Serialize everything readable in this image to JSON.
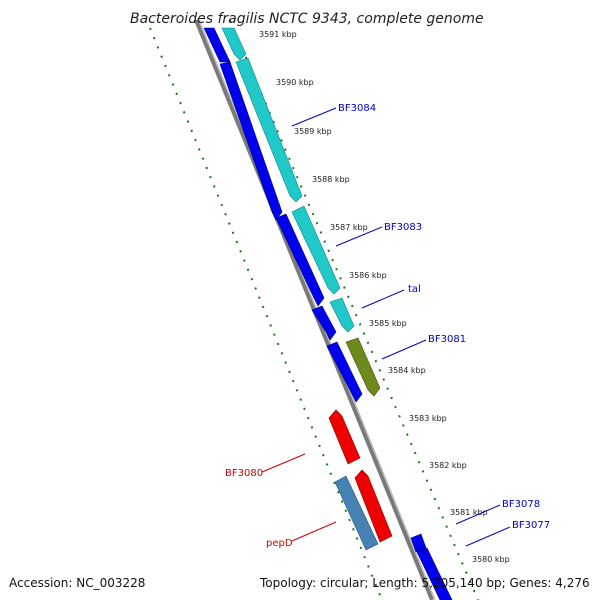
{
  "title": "Bacteroides fragilis NCTC 9343, complete genome",
  "footer": {
    "accession": "Accession: NC_003228",
    "summary": "Topology: circular; Length: 5,205,140 bp; Genes: 4,276"
  },
  "colors": {
    "backbone": "#808080",
    "tick": "#1a7a1a",
    "forward_gene": "#0000ee",
    "cds_cyan": "#20c8c8",
    "rna_olive": "#6f8a1c",
    "reverse_gene": "#ee0000",
    "steel": "#4682b4",
    "label_forward": "#0000cc",
    "label_reverse": "#cc0000"
  },
  "scale_ticks": [
    "3591 kbp",
    "3590 kbp",
    "3589 kbp",
    "3588 kbp",
    "3587 kbp",
    "3586 kbp",
    "3585 kbp",
    "3584 kbp",
    "3583 kbp",
    "3582 kbp",
    "3581 kbp",
    "3580 kbp"
  ],
  "gene_labels": {
    "BF3084": "BF3084",
    "BF3083": "BF3083",
    "tal": "tal",
    "BF3081": "BF3081",
    "BF3080": "BF3080",
    "pepD": "pepD",
    "BF3078": "BF3078",
    "BF3077": "BF3077"
  }
}
